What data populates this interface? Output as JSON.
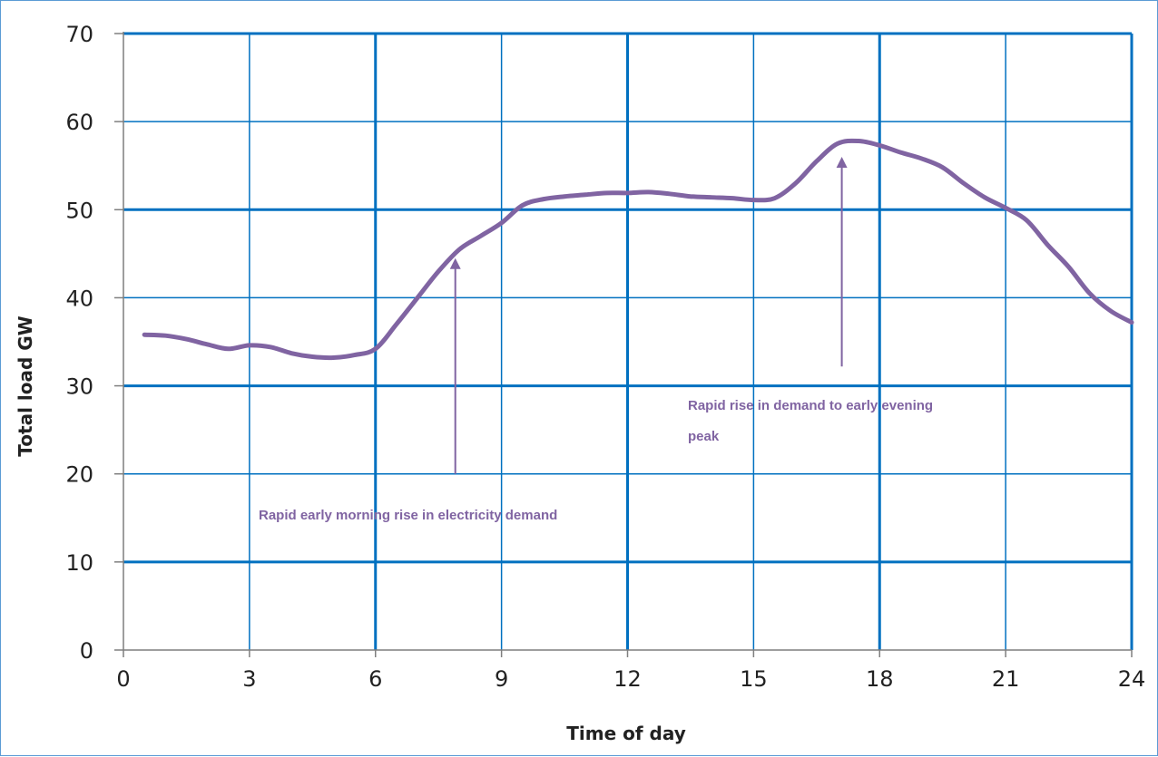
{
  "chart_data": {
    "type": "line",
    "xlabel": "Time of day",
    "ylabel": "Total load GW",
    "xlim": [
      0,
      24
    ],
    "ylim": [
      0,
      70
    ],
    "x_ticks": [
      "0",
      "3",
      "6",
      "9",
      "12",
      "15",
      "18",
      "21",
      "24"
    ],
    "y_ticks": [
      "0",
      "10",
      "20",
      "30",
      "40",
      "50",
      "60",
      "70"
    ],
    "grid": true,
    "series": [
      {
        "x": [
          0.5,
          1,
          1.5,
          2,
          2.5,
          3,
          3.5,
          4,
          4.5,
          5,
          5.5,
          6,
          6.5,
          7,
          7.5,
          8,
          8.5,
          9,
          9.5,
          10,
          10.5,
          11,
          11.5,
          12,
          12.5,
          13,
          13.5,
          14,
          14.5,
          15,
          15.5,
          16,
          16.5,
          17,
          17.5,
          18,
          18.5,
          19,
          19.5,
          20,
          20.5,
          21,
          21.5,
          22,
          22.5,
          23,
          23.5,
          24
        ],
        "y": [
          35.8,
          35.7,
          35.3,
          34.7,
          34.2,
          34.6,
          34.4,
          33.7,
          33.3,
          33.2,
          33.5,
          34.2,
          37.0,
          40.0,
          43.0,
          45.5,
          47.0,
          48.5,
          50.5,
          51.2,
          51.5,
          51.7,
          51.9,
          51.9,
          52.0,
          51.8,
          51.5,
          51.4,
          51.3,
          51.1,
          51.3,
          53.0,
          55.5,
          57.5,
          57.8,
          57.3,
          56.5,
          55.8,
          54.8,
          53.0,
          51.4,
          50.2,
          48.8,
          46.0,
          43.5,
          40.5,
          38.5,
          37.2
        ],
        "color": "#8064A2"
      }
    ],
    "annotations": [
      {
        "text": "Rapid early morning rise in electricity demand",
        "arrow_from": [
          7.9,
          20
        ],
        "arrow_to": [
          7.9,
          44.5
        ],
        "color": "#8064A2"
      },
      {
        "text_lines": [
          "Rapid rise in demand to early evening",
          "peak"
        ],
        "arrow_from": [
          17.1,
          32.2
        ],
        "arrow_to": [
          17.1,
          56
        ],
        "color": "#8064A2"
      }
    ]
  },
  "colors": {
    "grid": "#0070C0",
    "frame": "#5B9BD5",
    "line": "#8064A2"
  }
}
